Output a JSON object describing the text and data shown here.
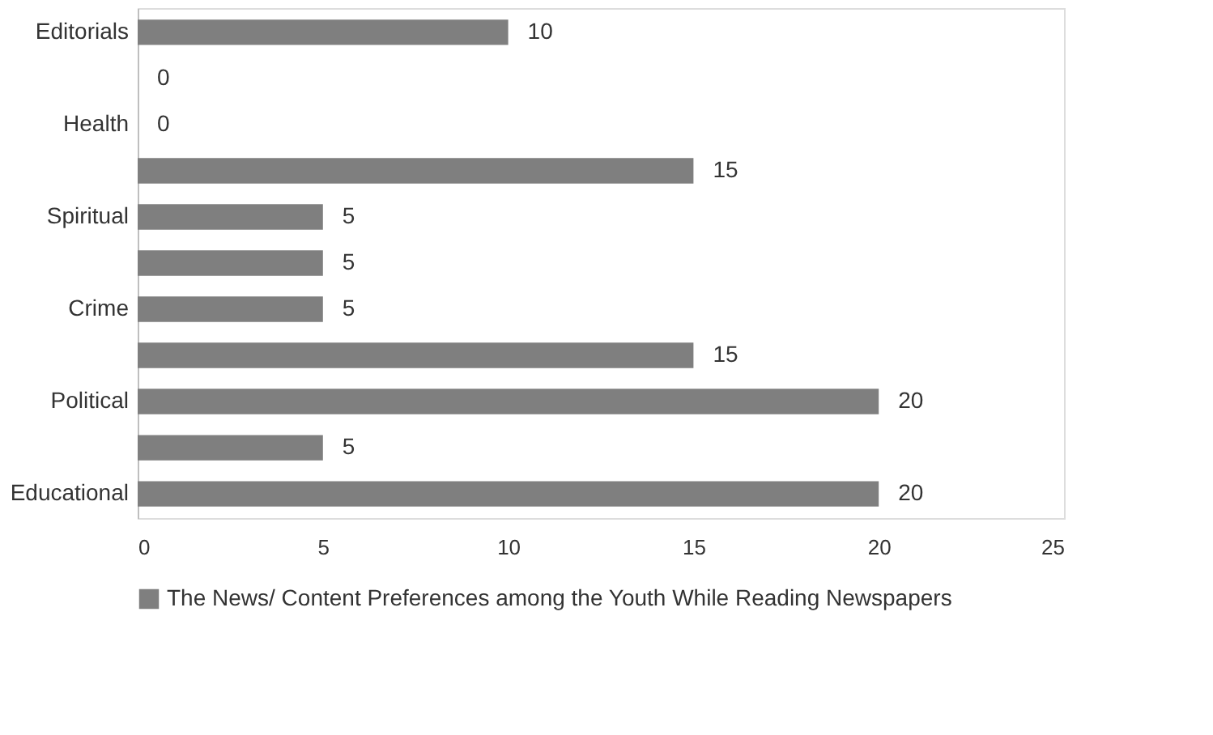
{
  "chart_data": {
    "type": "bar",
    "orientation": "horizontal",
    "categories": [
      "Editorials",
      null,
      "Health",
      null,
      "Spiritual",
      null,
      "Crime",
      null,
      "Political",
      null,
      "Educational"
    ],
    "series": [
      {
        "name": "The News/ Content Preferences among the Youth While Reading Newspapers",
        "color": "#7f7f7f",
        "values": [
          10,
          0,
          0,
          15,
          5,
          5,
          5,
          15,
          20,
          5,
          20
        ]
      }
    ],
    "xlim": [
      0,
      25
    ],
    "xticks": [
      0,
      5,
      10,
      15,
      20,
      25
    ],
    "grid": false,
    "data_labels": true,
    "legend": "bottom"
  }
}
